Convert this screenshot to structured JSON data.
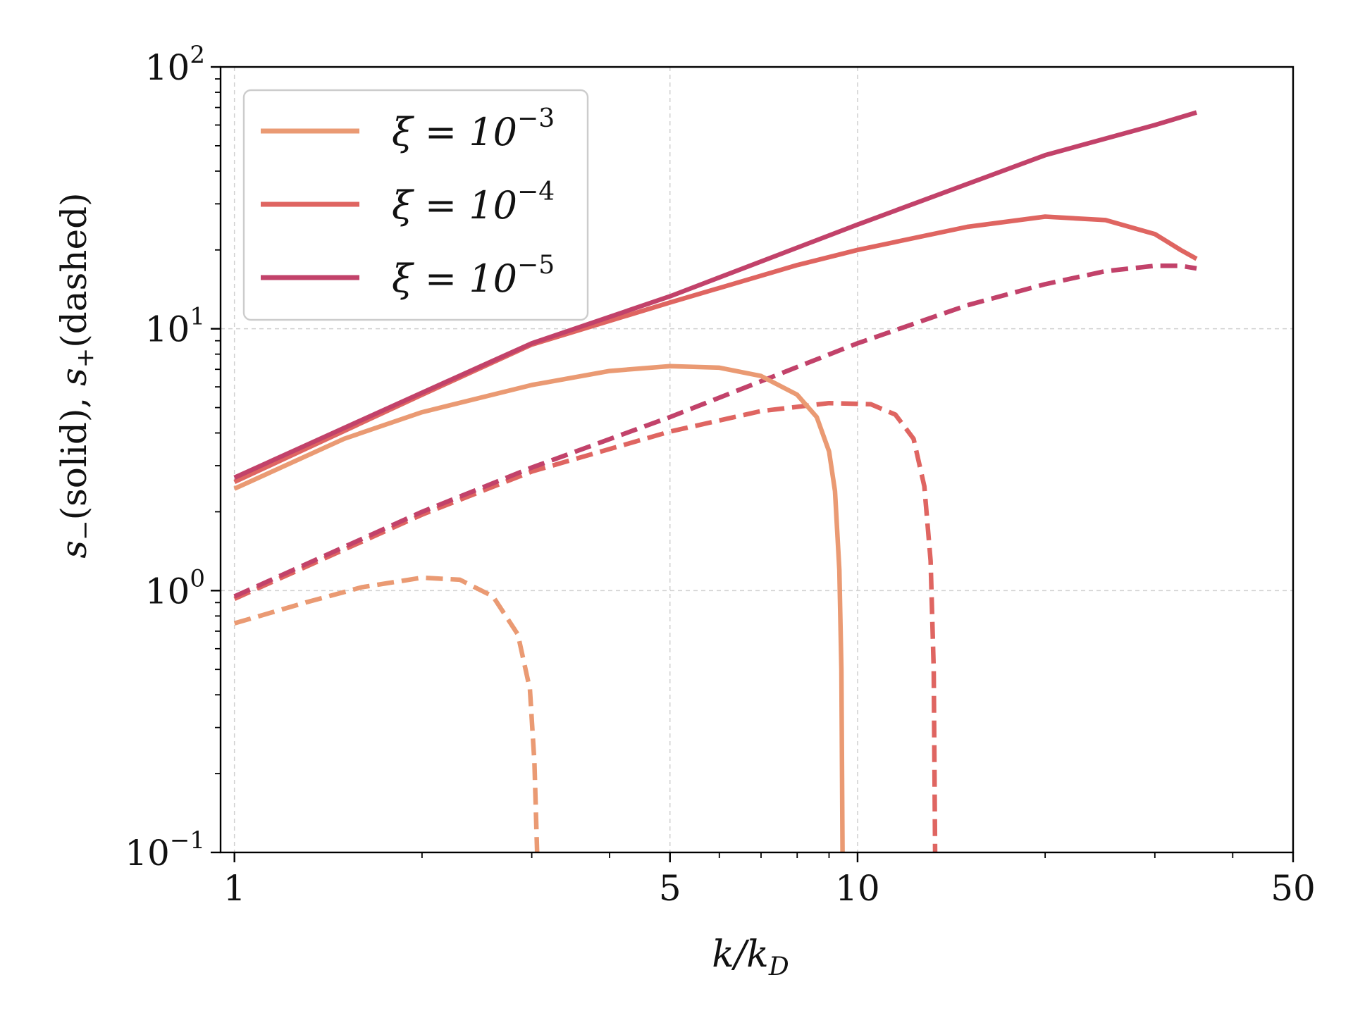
{
  "chart_data": {
    "type": "line",
    "title": "",
    "xlabel": "k/k",
    "xlabel_sub": "D",
    "ylabel_parts": {
      "s_minus": "s",
      "minus_sub": "−",
      "solid_text": "(solid), ",
      "s_plus": "s",
      "plus_sub": "+",
      "dashed_text": "(dashed)"
    },
    "x_scale": "log",
    "y_scale": "log",
    "xlim": [
      0.95,
      50
    ],
    "ylim": [
      0.1,
      100
    ],
    "x_ticks": [
      {
        "value": 1,
        "label": "1"
      },
      {
        "value": 5,
        "label": "5"
      },
      {
        "value": 10,
        "label": "10"
      },
      {
        "value": 50,
        "label": "50"
      }
    ],
    "y_ticks": [
      {
        "value": 0.1,
        "base": "10",
        "exp": "−1"
      },
      {
        "value": 1,
        "base": "10",
        "exp": "0"
      },
      {
        "value": 10,
        "base": "10",
        "exp": "1"
      },
      {
        "value": 100,
        "base": "10",
        "exp": "2"
      }
    ],
    "grid": true,
    "legend_position": "top-left",
    "series": [
      {
        "name": "ξ = 10",
        "name_exp": "−3",
        "color": "#EA9A73",
        "solid": [
          [
            1,
            2.45
          ],
          [
            1.5,
            3.8
          ],
          [
            2,
            4.8
          ],
          [
            3,
            6.1
          ],
          [
            4,
            6.9
          ],
          [
            5,
            7.2
          ],
          [
            6,
            7.1
          ],
          [
            7,
            6.6
          ],
          [
            8,
            5.6
          ],
          [
            8.6,
            4.6
          ],
          [
            9,
            3.4
          ],
          [
            9.2,
            2.4
          ],
          [
            9.35,
            1.2
          ],
          [
            9.42,
            0.5
          ],
          [
            9.46,
            0.1
          ]
        ],
        "dashed": [
          [
            1,
            0.75
          ],
          [
            1.3,
            0.9
          ],
          [
            1.6,
            1.03
          ],
          [
            2,
            1.12
          ],
          [
            2.3,
            1.1
          ],
          [
            2.6,
            0.95
          ],
          [
            2.85,
            0.68
          ],
          [
            2.98,
            0.42
          ],
          [
            3.03,
            0.22
          ],
          [
            3.06,
            0.1
          ]
        ]
      },
      {
        "name": "ξ = 10",
        "name_exp": "−4",
        "color": "#DF6561",
        "solid": [
          [
            1,
            2.6
          ],
          [
            2,
            5.6
          ],
          [
            3,
            8.7
          ],
          [
            5,
            12.6
          ],
          [
            8,
            17.5
          ],
          [
            10,
            20
          ],
          [
            15,
            24.5
          ],
          [
            20,
            26.8
          ],
          [
            25,
            26
          ],
          [
            30,
            23
          ],
          [
            33,
            20
          ],
          [
            35,
            18.5
          ]
        ],
        "dashed": [
          [
            1,
            0.93
          ],
          [
            2,
            1.95
          ],
          [
            3,
            2.85
          ],
          [
            5,
            4.05
          ],
          [
            7,
            4.85
          ],
          [
            9,
            5.2
          ],
          [
            10.5,
            5.15
          ],
          [
            11.5,
            4.7
          ],
          [
            12.3,
            3.8
          ],
          [
            12.8,
            2.5
          ],
          [
            13.1,
            1.3
          ],
          [
            13.25,
            0.5
          ],
          [
            13.32,
            0.1
          ]
        ]
      },
      {
        "name": "ξ = 10",
        "name_exp": "−5",
        "color": "#C2426A",
        "solid": [
          [
            1,
            2.7
          ],
          [
            2,
            5.7
          ],
          [
            3,
            8.8
          ],
          [
            5,
            13.3
          ],
          [
            10,
            25
          ],
          [
            20,
            46
          ],
          [
            30,
            60
          ],
          [
            35,
            67
          ]
        ],
        "dashed": [
          [
            1,
            0.95
          ],
          [
            2,
            2
          ],
          [
            3,
            2.95
          ],
          [
            5,
            4.6
          ],
          [
            10,
            8.8
          ],
          [
            15,
            12.3
          ],
          [
            20,
            14.8
          ],
          [
            25,
            16.6
          ],
          [
            30,
            17.4
          ],
          [
            33,
            17.4
          ],
          [
            35,
            17
          ]
        ]
      }
    ]
  }
}
